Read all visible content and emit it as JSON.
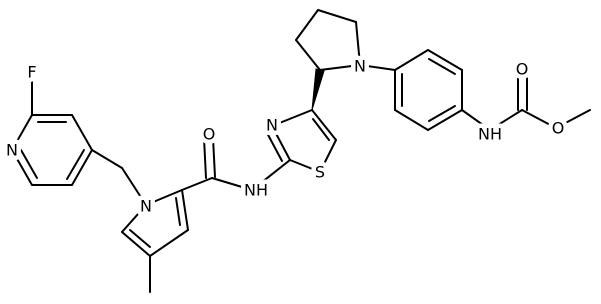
{
  "atoms": [
    "F",
    "N",
    "N",
    "O",
    "NH",
    "N",
    "S",
    "N",
    "NH",
    "O",
    "O"
  ]
}
